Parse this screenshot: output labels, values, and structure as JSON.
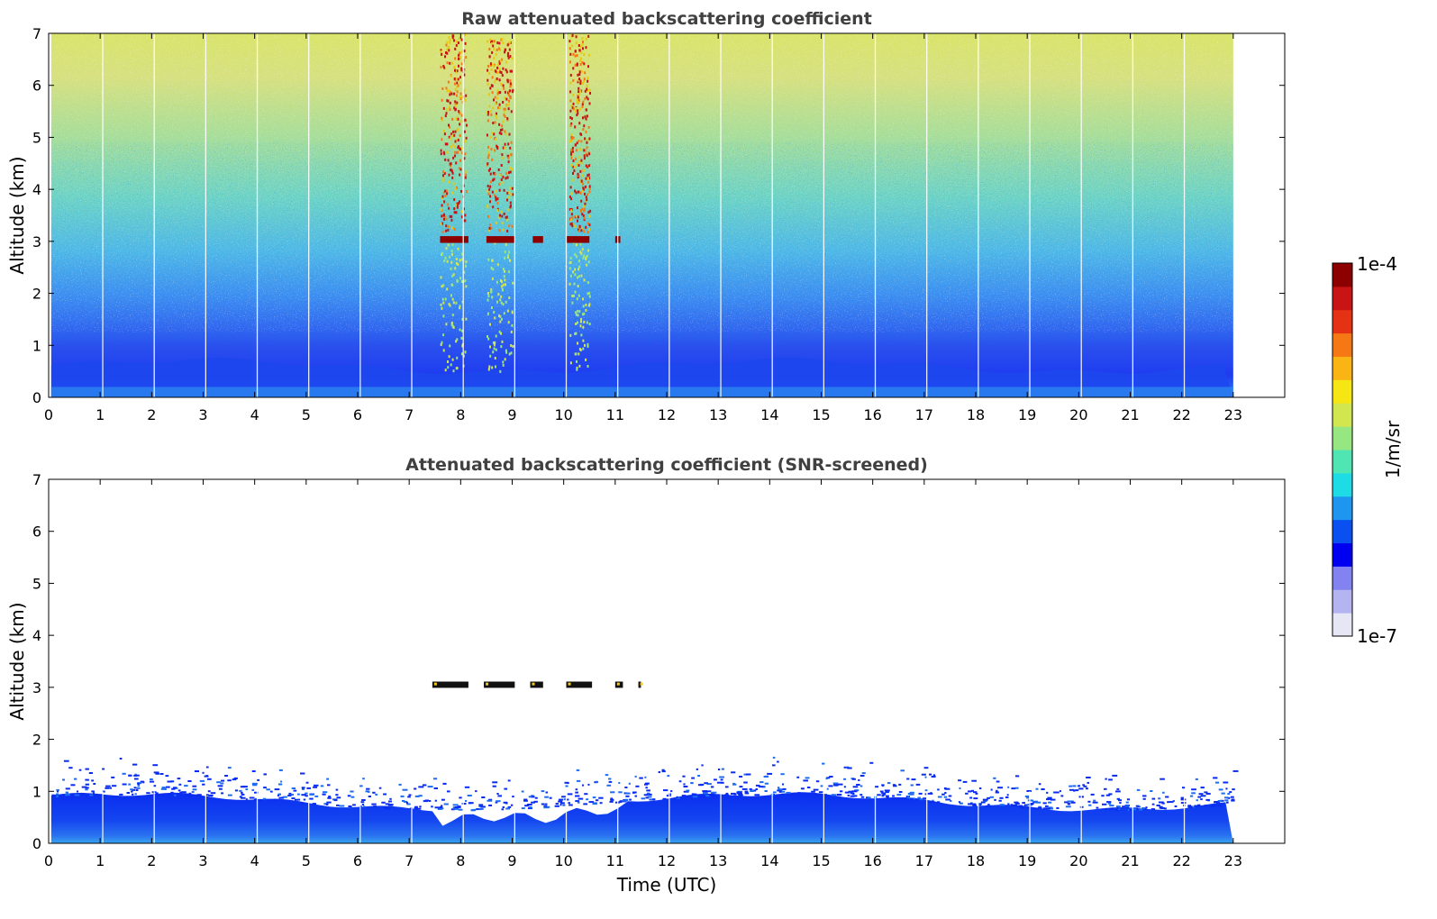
{
  "chart_data": [
    {
      "type": "heatmap",
      "title": "Raw attenuated backscattering coefficient",
      "xlabel": "",
      "ylabel": "Altitude (km)",
      "xlim": [
        0,
        24
      ],
      "ylim": [
        0,
        7
      ],
      "xticks": [
        "0",
        "1",
        "2",
        "3",
        "4",
        "5",
        "6",
        "7",
        "8",
        "9",
        "10",
        "11",
        "12",
        "13",
        "14",
        "15",
        "16",
        "17",
        "18",
        "19",
        "20",
        "21",
        "22",
        "23"
      ],
      "yticks": [
        "0",
        "1",
        "2",
        "3",
        "4",
        "5",
        "6",
        "7"
      ],
      "data_extent_time_utc": [
        0.05,
        23.0
      ],
      "features": {
        "boundary_layer_top_km": 0.6,
        "cloud_layer_altitude_km": 3.05,
        "cloud_layer_time_utc": [
          7.6,
          11.1
        ],
        "high_signal_columns_utc": [
          [
            7.6,
            8.1
          ],
          [
            8.5,
            9.0
          ],
          [
            10.1,
            10.5
          ]
        ]
      }
    },
    {
      "type": "heatmap",
      "title": "Attenuated backscattering coefficient (SNR-screened)",
      "xlabel": "Time (UTC)",
      "ylabel": "Altitude (km)",
      "xlim": [
        0,
        24
      ],
      "ylim": [
        0,
        7
      ],
      "xticks": [
        "0",
        "1",
        "2",
        "3",
        "4",
        "5",
        "6",
        "7",
        "8",
        "9",
        "10",
        "11",
        "12",
        "13",
        "14",
        "15",
        "16",
        "17",
        "18",
        "19",
        "20",
        "21",
        "22",
        "23"
      ],
      "yticks": [
        "0",
        "1",
        "2",
        "3",
        "4",
        "5",
        "6",
        "7"
      ],
      "data_extent_time_utc": [
        0.05,
        23.0
      ],
      "features": {
        "boundary_layer_top_km": 0.8,
        "cloud_layer_altitude_km": 3.05,
        "cloud_layer_time_utc": [
          7.4,
          11.5
        ]
      }
    }
  ],
  "colorbar": {
    "label": "1/m/sr",
    "max_label": "1e-4",
    "min_label": "1e-7",
    "scale": "log",
    "colormap": [
      "#e6e6f5",
      "#b4b4f0",
      "#8282f0",
      "#0000f0",
      "#0a50f0",
      "#1e96f0",
      "#1edce6",
      "#50e6b4",
      "#96e682",
      "#d2e650",
      "#f5e614",
      "#fab414",
      "#f57814",
      "#e63214",
      "#c81414",
      "#8c0000"
    ]
  }
}
